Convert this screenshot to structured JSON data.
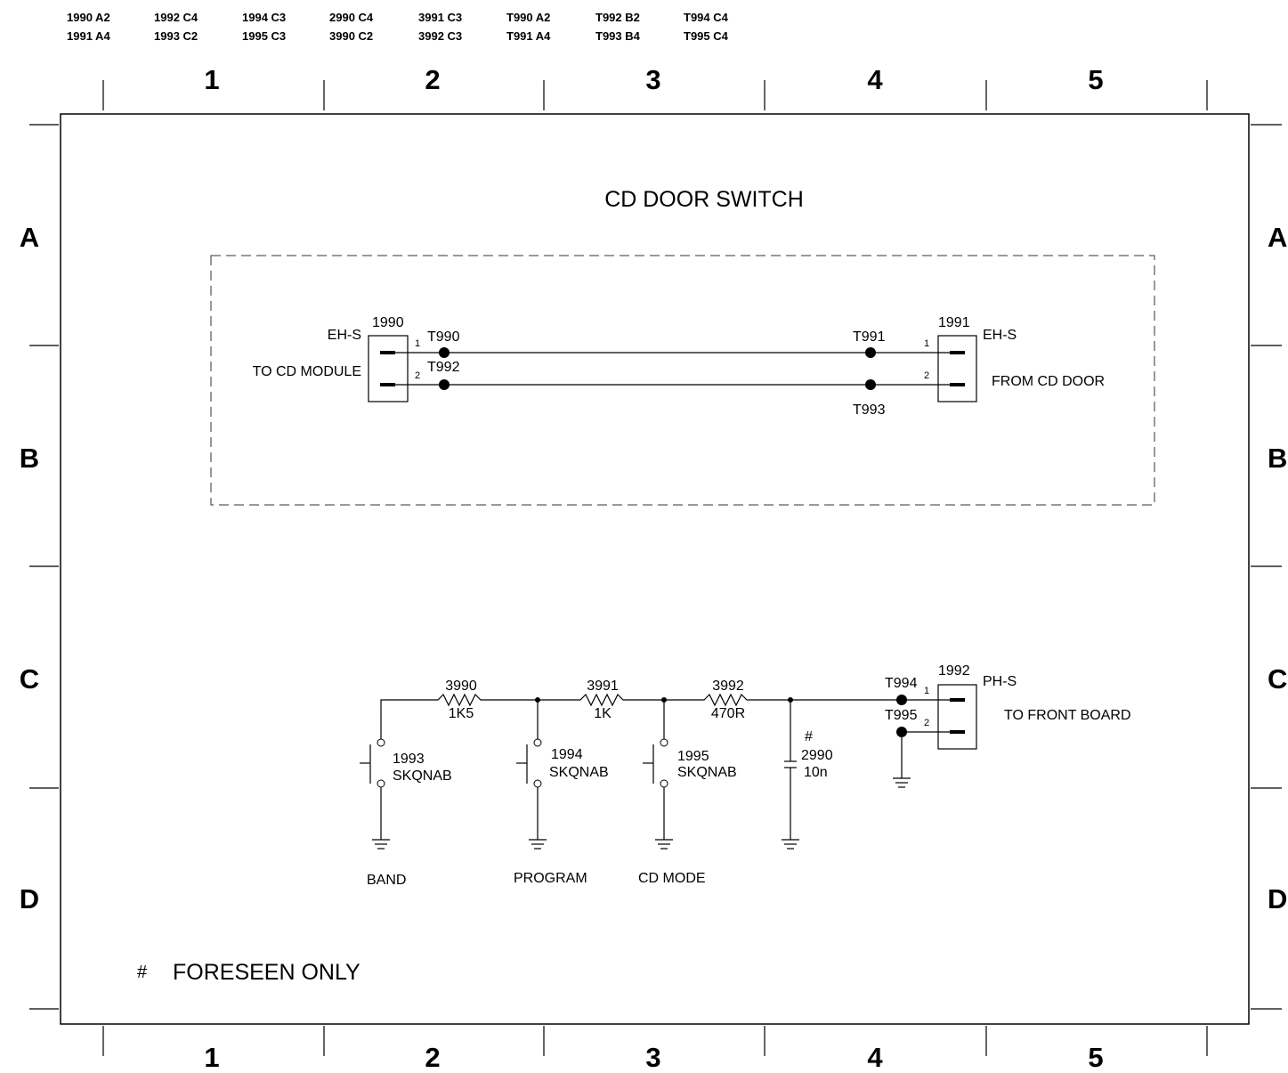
{
  "refs": [
    {
      "a": "1990 A2",
      "b": "1991 A4"
    },
    {
      "a": "1992 C4",
      "b": "1993 C2"
    },
    {
      "a": "1994 C3",
      "b": "1995 C3"
    },
    {
      "a": "2990 C4",
      "b": "3990 C2"
    },
    {
      "a": "3991 C3",
      "b": "3992 C3"
    },
    {
      "a": "T990 A2",
      "b": "T991 A4"
    },
    {
      "a": "T992 B2",
      "b": "T993 B4"
    },
    {
      "a": "T994 C4",
      "b": "T995 C4"
    }
  ],
  "columns": [
    "1",
    "2",
    "3",
    "4",
    "5"
  ],
  "rows": [
    "A",
    "B",
    "C",
    "D"
  ],
  "door": {
    "title": "CD DOOR SWITCH",
    "left": {
      "ref": "1990",
      "type": "EH-S",
      "label": "TO CD MODULE",
      "pin1": "1",
      "pin2": "2"
    },
    "right": {
      "ref": "1991",
      "type": "EH-S",
      "label": "FROM CD DOOR",
      "pin1": "1",
      "pin2": "2"
    },
    "tp": {
      "t990": "T990",
      "t992": "T992",
      "t991": "T991",
      "t993": "T993"
    }
  },
  "buttons": {
    "r3990": {
      "ref": "3990",
      "val": "1K5"
    },
    "r3991": {
      "ref": "3991",
      "val": "1K"
    },
    "r3992": {
      "ref": "3992",
      "val": "470R"
    },
    "s1993": {
      "ref": "1993",
      "type": "SKQNAB",
      "label": "BAND"
    },
    "s1994": {
      "ref": "1994",
      "type": "SKQNAB",
      "label": "PROGRAM"
    },
    "s1995": {
      "ref": "1995",
      "type": "SKQNAB",
      "label": "CD MODE"
    },
    "c2990": {
      "mark": "#",
      "ref": "2990",
      "val": "10n"
    },
    "conn": {
      "ref": "1992",
      "type": "PH-S",
      "label": "TO FRONT BOARD",
      "pin1": "1",
      "pin2": "2"
    },
    "tp": {
      "t994": "T994",
      "t995": "T995"
    }
  },
  "note": {
    "mark": "#",
    "text": "FORESEEN ONLY"
  }
}
